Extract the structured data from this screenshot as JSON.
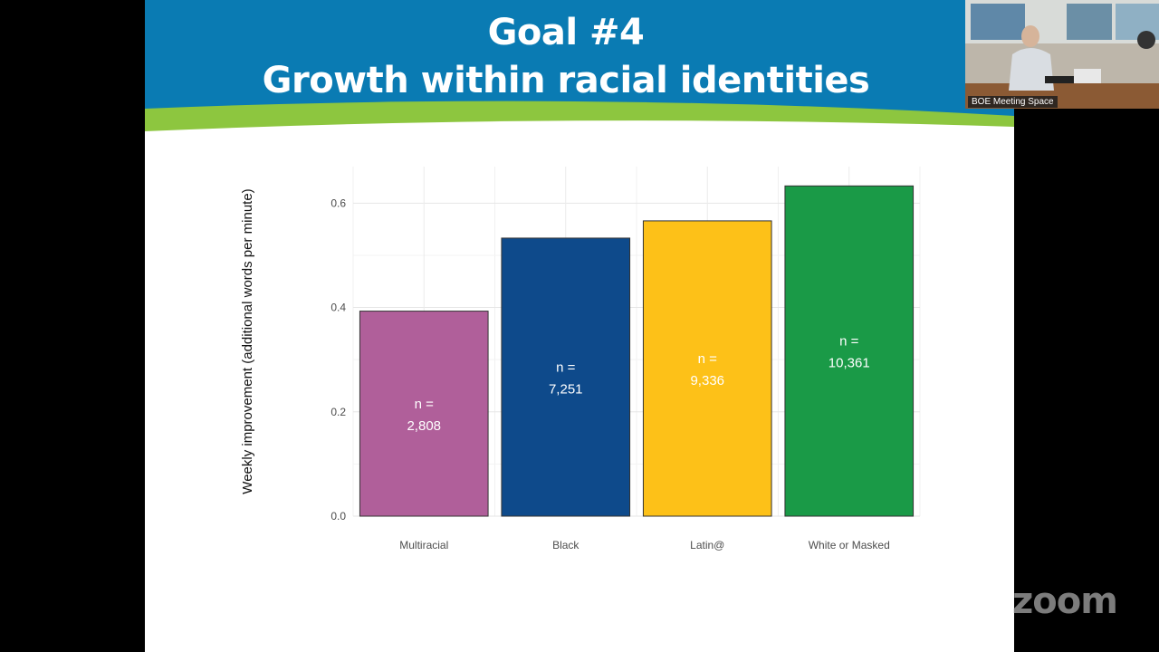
{
  "slide": {
    "title_line1": "Goal #4",
    "title_line2": "Growth within racial identities",
    "header_color": "#0a7bb3",
    "accent_color": "#8dc63f"
  },
  "chart_data": {
    "type": "bar",
    "title": "",
    "xlabel": "",
    "ylabel": "Weekly improvement (additional words per minute)",
    "ylim": [
      0,
      0.67
    ],
    "yticks": [
      "0.0",
      "0.2",
      "0.4",
      "0.6"
    ],
    "grid": true,
    "legend": "none",
    "categories": [
      "Multiracial",
      "Black",
      "Latin@",
      "White or Masked"
    ],
    "values": [
      0.393,
      0.533,
      0.566,
      0.633
    ],
    "colors": [
      "#b05f9a",
      "#0e4a8b",
      "#fdc118",
      "#1a9a47"
    ],
    "bar_labels": [
      [
        "n =",
        "2,808"
      ],
      [
        "n =",
        "7,251"
      ],
      [
        "n =",
        "9,336"
      ],
      [
        "n =",
        "10,361"
      ]
    ]
  },
  "video": {
    "label": "BOE Meeting Space"
  },
  "zoom": {
    "logo_text": "zoom"
  }
}
